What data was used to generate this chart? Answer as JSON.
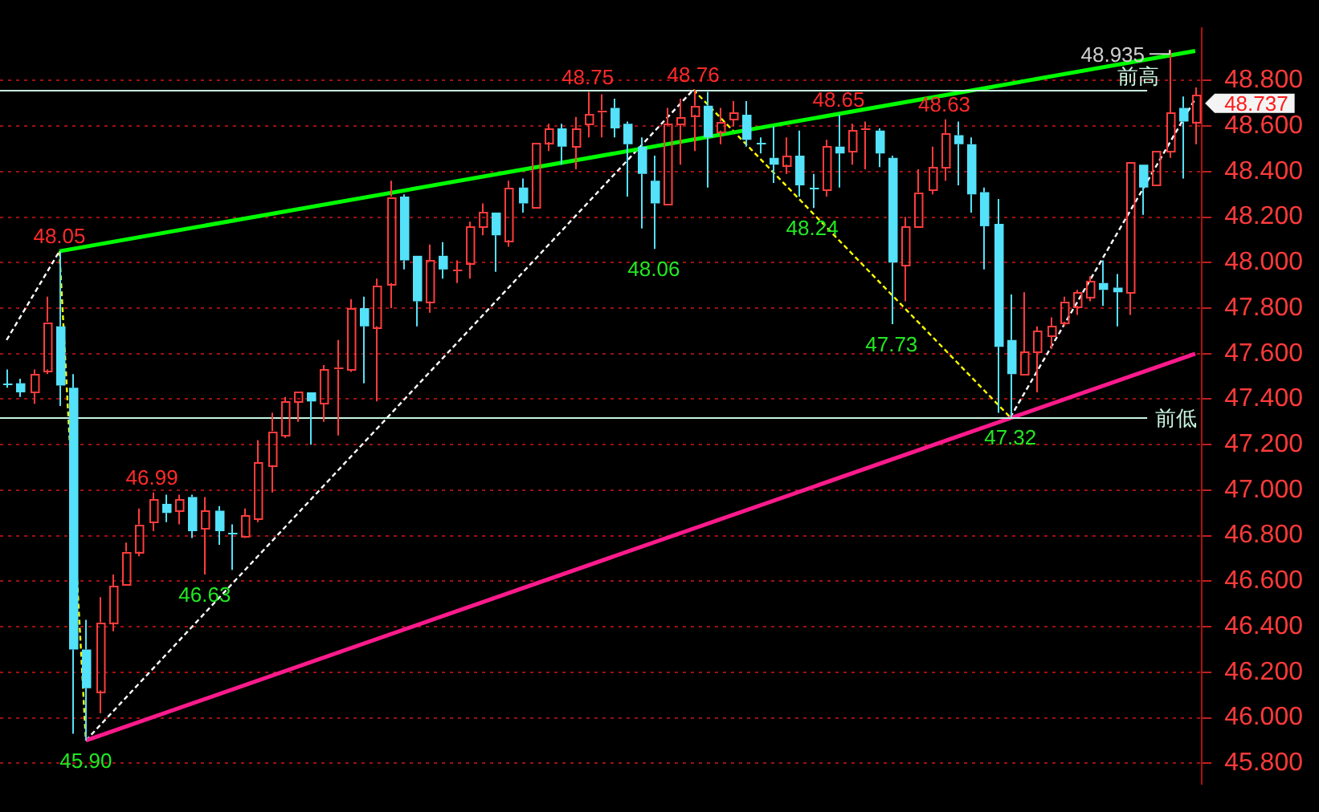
{
  "chart_data": {
    "type": "candlestick",
    "categories": [
      null,
      null,
      null,
      null,
      null,
      null,
      null,
      null,
      null,
      null,
      null,
      null,
      null,
      null,
      null,
      null,
      null,
      null,
      null,
      null,
      null,
      null,
      null,
      null,
      null,
      null,
      null,
      null,
      null,
      null,
      null,
      null,
      null,
      null,
      null,
      null,
      null,
      null,
      null,
      null,
      null,
      null,
      null,
      null,
      null,
      null,
      null,
      null,
      null,
      null,
      null,
      null,
      null,
      null,
      null,
      null,
      null,
      null,
      null,
      null,
      null,
      null,
      null,
      null,
      null,
      null,
      null,
      null,
      null,
      null,
      null,
      null,
      null,
      null,
      null,
      null,
      null,
      null,
      null,
      null,
      null,
      null,
      null,
      null,
      null,
      null,
      null,
      null,
      null,
      null,
      null
    ],
    "ohlc": [
      [
        47.47,
        47.53,
        47.45,
        47.47
      ],
      [
        47.47,
        47.49,
        47.41,
        47.43
      ],
      [
        47.43,
        47.53,
        47.38,
        47.51
      ],
      [
        47.53,
        47.85,
        47.51,
        47.74
      ],
      [
        47.72,
        48.05,
        47.37,
        47.46
      ],
      [
        47.45,
        47.51,
        45.93,
        46.3
      ],
      [
        46.3,
        46.43,
        45.9,
        46.13
      ],
      [
        46.12,
        46.53,
        46.02,
        46.42
      ],
      [
        46.42,
        46.63,
        46.38,
        46.58
      ],
      [
        46.59,
        46.77,
        46.59,
        46.73
      ],
      [
        46.73,
        46.92,
        46.71,
        46.85
      ],
      [
        46.86,
        46.99,
        46.82,
        46.96
      ],
      [
        46.94,
        46.98,
        46.86,
        46.9
      ],
      [
        46.91,
        46.98,
        46.85,
        46.96
      ],
      [
        46.97,
        46.98,
        46.79,
        46.82
      ],
      [
        46.83,
        46.97,
        46.63,
        46.91
      ],
      [
        46.91,
        46.93,
        46.76,
        46.82
      ],
      [
        46.81,
        46.85,
        46.65,
        46.81
      ],
      [
        46.8,
        46.92,
        46.79,
        46.89
      ],
      [
        46.87,
        47.22,
        46.86,
        47.12
      ],
      [
        47.11,
        47.34,
        46.99,
        47.26
      ],
      [
        47.24,
        47.41,
        47.23,
        47.39
      ],
      [
        47.39,
        47.43,
        47.3,
        47.43
      ],
      [
        47.43,
        47.43,
        47.2,
        47.39
      ],
      [
        47.38,
        47.55,
        47.3,
        47.53
      ],
      [
        47.53,
        47.66,
        47.24,
        47.54
      ],
      [
        47.53,
        47.84,
        47.52,
        47.8
      ],
      [
        47.8,
        47.85,
        47.47,
        47.72
      ],
      [
        47.72,
        47.93,
        47.39,
        47.9
      ],
      [
        47.91,
        48.36,
        47.8,
        48.29
      ],
      [
        48.29,
        48.3,
        47.97,
        48.01
      ],
      [
        48.03,
        48.03,
        47.72,
        47.83
      ],
      [
        47.83,
        48.08,
        47.78,
        48.01
      ],
      [
        48.03,
        48.09,
        47.93,
        47.97
      ],
      [
        47.97,
        48.01,
        47.91,
        47.97
      ],
      [
        48.0,
        48.18,
        47.93,
        48.16
      ],
      [
        48.16,
        48.26,
        48.12,
        48.22
      ],
      [
        48.22,
        48.22,
        47.96,
        48.12
      ],
      [
        48.1,
        48.36,
        48.07,
        48.33
      ],
      [
        48.33,
        48.37,
        48.22,
        48.26
      ],
      [
        48.25,
        48.53,
        48.25,
        48.53
      ],
      [
        48.53,
        48.61,
        48.49,
        48.59
      ],
      [
        48.59,
        48.61,
        48.43,
        48.51
      ],
      [
        48.51,
        48.64,
        48.41,
        48.59
      ],
      [
        48.61,
        48.75,
        48.55,
        48.65
      ],
      [
        48.66,
        48.74,
        48.55,
        48.67
      ],
      [
        48.68,
        48.72,
        48.55,
        48.59
      ],
      [
        48.61,
        48.62,
        48.29,
        48.52
      ],
      [
        48.51,
        48.55,
        48.15,
        48.39
      ],
      [
        48.36,
        48.47,
        48.06,
        48.26
      ],
      [
        48.26,
        48.68,
        48.26,
        48.61
      ],
      [
        48.61,
        48.72,
        48.43,
        48.64
      ],
      [
        48.65,
        48.76,
        48.49,
        48.69
      ],
      [
        48.69,
        48.75,
        48.33,
        48.55
      ],
      [
        48.58,
        48.68,
        48.52,
        48.62
      ],
      [
        48.63,
        48.71,
        48.6,
        48.66
      ],
      [
        48.65,
        48.71,
        48.51,
        48.54
      ],
      [
        48.53,
        48.55,
        48.48,
        48.53
      ],
      [
        48.46,
        48.6,
        48.35,
        48.43
      ],
      [
        48.43,
        48.55,
        48.39,
        48.47
      ],
      [
        48.47,
        48.58,
        48.29,
        48.34
      ],
      [
        48.33,
        48.39,
        48.24,
        48.33
      ],
      [
        48.32,
        48.54,
        48.29,
        48.51
      ],
      [
        48.51,
        48.65,
        48.33,
        48.48
      ],
      [
        48.49,
        48.61,
        48.43,
        48.58
      ],
      [
        48.58,
        48.62,
        48.41,
        48.59
      ],
      [
        48.58,
        48.59,
        48.42,
        48.48
      ],
      [
        48.46,
        48.47,
        47.73,
        48.0
      ],
      [
        47.99,
        48.2,
        47.83,
        48.16
      ],
      [
        48.16,
        48.41,
        48.16,
        48.31
      ],
      [
        48.32,
        48.51,
        48.3,
        48.42
      ],
      [
        48.42,
        48.63,
        48.36,
        48.57
      ],
      [
        48.56,
        48.62,
        48.34,
        48.52
      ],
      [
        48.52,
        48.55,
        48.22,
        48.3
      ],
      [
        48.31,
        48.33,
        47.97,
        48.16
      ],
      [
        48.17,
        48.28,
        47.34,
        47.63
      ],
      [
        47.66,
        47.86,
        47.32,
        47.51
      ],
      [
        47.51,
        47.87,
        47.51,
        47.61
      ],
      [
        47.61,
        47.72,
        47.43,
        47.7
      ],
      [
        47.68,
        47.76,
        47.62,
        47.72
      ],
      [
        47.74,
        47.85,
        47.72,
        47.83
      ],
      [
        47.81,
        47.88,
        47.77,
        47.87
      ],
      [
        47.85,
        47.94,
        47.83,
        47.92
      ],
      [
        47.91,
        48.01,
        47.81,
        47.88
      ],
      [
        47.89,
        47.95,
        47.72,
        47.87
      ],
      [
        47.87,
        48.44,
        47.77,
        48.44
      ],
      [
        48.43,
        48.43,
        48.21,
        48.33
      ],
      [
        48.34,
        48.49,
        48.34,
        48.49
      ],
      [
        48.49,
        48.935,
        48.46,
        48.66
      ],
      [
        48.68,
        48.73,
        48.37,
        48.62
      ],
      [
        48.62,
        48.77,
        48.52,
        48.737
      ]
    ],
    "colors": [
      "#54e1fa",
      "#54e1fa",
      "#ff3c3c",
      "#ff3c3c",
      "#54e1fa",
      "#54e1fa",
      "#54e1fa",
      "#ff3c3c",
      "#ff3c3c",
      "#ff3c3c",
      "#ff3c3c",
      "#ff3c3c",
      "#54e1fa",
      "#ff3c3c",
      "#54e1fa",
      "#ff3c3c",
      "#54e1fa",
      "#54e1fa",
      "#ff3c3c",
      "#ff3c3c",
      "#ff3c3c",
      "#ff3c3c",
      "#ff3c3c",
      "#54e1fa",
      "#ff3c3c",
      "#ff3c3c",
      "#ff3c3c",
      "#54e1fa",
      "#ff3c3c",
      "#ff3c3c",
      "#54e1fa",
      "#54e1fa",
      "#ff3c3c",
      "#54e1fa",
      "#ff3c3c",
      "#ff3c3c",
      "#ff3c3c",
      "#54e1fa",
      "#ff3c3c",
      "#54e1fa",
      "#ff3c3c",
      "#ff3c3c",
      "#54e1fa",
      "#ff3c3c",
      "#ff3c3c",
      "#ff3c3c",
      "#54e1fa",
      "#54e1fa",
      "#54e1fa",
      "#54e1fa",
      "#ff3c3c",
      "#ff3c3c",
      "#ff3c3c",
      "#54e1fa",
      "#ff3c3c",
      "#ff3c3c",
      "#54e1fa",
      "#54e1fa",
      "#54e1fa",
      "#ff3c3c",
      "#54e1fa",
      "#54e1fa",
      "#ff3c3c",
      "#54e1fa",
      "#ff3c3c",
      "#ff3c3c",
      "#54e1fa",
      "#54e1fa",
      "#ff3c3c",
      "#ff3c3c",
      "#ff3c3c",
      "#ff3c3c",
      "#54e1fa",
      "#54e1fa",
      "#54e1fa",
      "#54e1fa",
      "#54e1fa",
      "#ff3c3c",
      "#ff3c3c",
      "#ff3c3c",
      "#ff3c3c",
      "#ff3c3c",
      "#ff3c3c",
      "#54e1fa",
      "#54e1fa",
      "#ff3c3c",
      "#54e1fa",
      "#ff3c3c",
      "#ff3c3c",
      "#54e1fa",
      "#ff3c3c"
    ],
    "value_labels": [
      null,
      null,
      null,
      null,
      "48.05",
      null,
      "45.90",
      null,
      null,
      null,
      null,
      "46.99",
      null,
      null,
      null,
      "46.63",
      null,
      null,
      null,
      null,
      null,
      null,
      null,
      null,
      null,
      null,
      null,
      null,
      null,
      null,
      null,
      null,
      null,
      null,
      null,
      null,
      null,
      null,
      null,
      null,
      null,
      null,
      null,
      null,
      "48.75",
      null,
      null,
      null,
      null,
      "48.06",
      null,
      null,
      "48.76",
      null,
      null,
      null,
      null,
      null,
      null,
      null,
      null,
      "48.24",
      null,
      "48.65",
      null,
      null,
      null,
      "47.73",
      null,
      null,
      null,
      "48.63",
      null,
      null,
      null,
      null,
      "47.32",
      null,
      null,
      null,
      null,
      null,
      null,
      null,
      null,
      null,
      null,
      null,
      "48.935",
      null,
      null
    ],
    "series": [
      {
        "type": "line",
        "color": "#00ff00",
        "values": [
          null,
          null,
          null,
          null,
          48.05,
          null,
          null,
          null,
          null,
          null,
          null,
          null,
          null,
          null,
          null,
          null,
          null,
          null,
          null,
          null,
          null,
          null,
          null,
          null,
          null,
          null,
          null,
          null,
          null,
          null,
          null,
          null,
          null,
          null,
          null,
          null,
          null,
          null,
          null,
          null,
          null,
          null,
          null,
          null,
          null,
          null,
          null,
          null,
          null,
          null,
          null,
          null,
          null,
          null,
          null,
          null,
          null,
          null,
          null,
          null,
          null,
          null,
          null,
          null,
          null,
          null,
          null,
          null,
          null,
          null,
          null,
          null,
          null,
          null,
          null,
          null,
          null,
          null,
          null,
          null,
          null,
          null,
          null,
          null,
          null,
          null,
          null,
          null,
          null,
          null,
          48.93
        ]
      },
      {
        "type": "line",
        "color": "#ff1a8c",
        "values": [
          null,
          null,
          null,
          null,
          null,
          null,
          45.9,
          null,
          null,
          null,
          null,
          null,
          null,
          null,
          null,
          null,
          null,
          null,
          null,
          null,
          null,
          null,
          null,
          null,
          null,
          null,
          null,
          null,
          null,
          null,
          null,
          null,
          null,
          null,
          null,
          null,
          null,
          null,
          null,
          null,
          null,
          null,
          null,
          null,
          null,
          null,
          null,
          null,
          null,
          null,
          null,
          null,
          null,
          null,
          null,
          null,
          null,
          null,
          null,
          null,
          null,
          null,
          null,
          null,
          null,
          null,
          null,
          null,
          null,
          null,
          null,
          null,
          null,
          null,
          null,
          null,
          null,
          null,
          null,
          null,
          null,
          null,
          null,
          null,
          null,
          null,
          null,
          null,
          null,
          null,
          47.6
        ]
      },
      {
        "type": "line",
        "color": "#ffffff",
        "line_style": "dashed",
        "values": [
          47.66,
          null,
          null,
          null,
          48.05,
          null,
          null,
          null,
          null,
          null,
          null,
          null,
          null,
          null,
          null,
          null,
          null,
          null,
          null,
          null,
          null,
          null,
          null,
          null,
          null,
          null,
          null,
          null,
          null,
          null,
          null,
          null,
          null,
          null,
          null,
          null,
          null,
          null,
          null,
          null,
          null,
          null,
          null,
          null,
          null,
          null,
          null,
          null,
          null,
          null,
          null,
          null,
          null,
          null,
          null,
          null,
          null,
          null,
          null,
          null,
          null,
          null,
          null,
          null,
          null,
          null,
          null,
          null,
          null,
          null,
          null,
          null,
          null,
          null,
          null,
          null,
          null,
          null,
          null,
          null,
          null,
          null,
          null,
          null,
          null,
          null,
          null,
          null,
          null,
          null,
          null
        ]
      },
      {
        "type": "line",
        "color": "#ffff00",
        "line_style": "dashed",
        "values": [
          null,
          null,
          null,
          null,
          48.05,
          null,
          45.9,
          null,
          null,
          null,
          null,
          null,
          null,
          null,
          null,
          null,
          null,
          null,
          null,
          null,
          null,
          null,
          null,
          null,
          null,
          null,
          null,
          null,
          null,
          null,
          null,
          null,
          null,
          null,
          null,
          null,
          null,
          null,
          null,
          null,
          null,
          null,
          null,
          null,
          null,
          null,
          null,
          null,
          null,
          null,
          null,
          null,
          null,
          null,
          null,
          null,
          null,
          null,
          null,
          null,
          null,
          null,
          null,
          null,
          null,
          null,
          null,
          null,
          null,
          null,
          null,
          null,
          null,
          null,
          null,
          null,
          null,
          null,
          null,
          null,
          null,
          null,
          null,
          null,
          null,
          null,
          null,
          null,
          null,
          null,
          null
        ]
      },
      {
        "type": "line",
        "color": "#ffffff",
        "line_style": "dashed",
        "values": [
          null,
          null,
          null,
          null,
          null,
          null,
          45.9,
          null,
          null,
          null,
          null,
          null,
          null,
          null,
          null,
          null,
          null,
          null,
          null,
          null,
          null,
          null,
          null,
          null,
          null,
          null,
          null,
          null,
          null,
          null,
          null,
          null,
          null,
          null,
          null,
          null,
          null,
          null,
          null,
          null,
          null,
          null,
          null,
          null,
          null,
          null,
          null,
          null,
          null,
          null,
          null,
          null,
          48.76,
          null,
          null,
          null,
          null,
          null,
          null,
          null,
          null,
          null,
          null,
          null,
          null,
          null,
          null,
          null,
          null,
          null,
          null,
          null,
          null,
          null,
          null,
          null,
          null,
          null,
          null,
          null,
          null,
          null,
          null,
          null,
          null,
          null,
          null,
          null,
          null,
          null,
          null
        ]
      },
      {
        "type": "line",
        "color": "#ffff00",
        "line_style": "dashed",
        "values": [
          null,
          null,
          null,
          null,
          null,
          null,
          null,
          null,
          null,
          null,
          null,
          null,
          null,
          null,
          null,
          null,
          null,
          null,
          null,
          null,
          null,
          null,
          null,
          null,
          null,
          null,
          null,
          null,
          null,
          null,
          null,
          null,
          null,
          null,
          null,
          null,
          null,
          null,
          null,
          null,
          null,
          null,
          null,
          null,
          null,
          null,
          null,
          null,
          null,
          null,
          null,
          null,
          48.76,
          null,
          null,
          null,
          null,
          null,
          null,
          null,
          null,
          null,
          null,
          null,
          null,
          null,
          null,
          null,
          null,
          null,
          null,
          null,
          null,
          null,
          null,
          null,
          47.32,
          null,
          null,
          null,
          null,
          null,
          null,
          null,
          null,
          null,
          null,
          null,
          null,
          null,
          null
        ]
      },
      {
        "type": "line",
        "color": "#ffffff",
        "line_style": "dashed",
        "values": [
          null,
          null,
          null,
          null,
          null,
          null,
          null,
          null,
          null,
          null,
          null,
          null,
          null,
          null,
          null,
          null,
          null,
          null,
          null,
          null,
          null,
          null,
          null,
          null,
          null,
          null,
          null,
          null,
          null,
          null,
          null,
          null,
          null,
          null,
          null,
          null,
          null,
          null,
          null,
          null,
          null,
          null,
          null,
          null,
          null,
          null,
          null,
          null,
          null,
          null,
          null,
          null,
          null,
          null,
          null,
          null,
          null,
          null,
          null,
          null,
          null,
          null,
          null,
          null,
          null,
          null,
          null,
          null,
          null,
          null,
          null,
          null,
          null,
          null,
          null,
          null,
          47.32,
          null,
          null,
          null,
          null,
          null,
          null,
          null,
          null,
          null,
          null,
          null,
          null,
          null,
          48.72
        ]
      }
    ],
    "ref_lines": [
      {
        "axis": "y",
        "value": 48.76,
        "label": "前高",
        "color": "#c8f5e0"
      },
      {
        "axis": "y",
        "value": 47.32,
        "label": "前低",
        "color": "#c8f5e0"
      }
    ],
    "annotations": [
      "48.737"
    ],
    "ylim": [
      45.71,
      49.03
    ],
    "yticks": [
      {
        "value": 45.8,
        "label": "45.800"
      },
      {
        "value": 46.0,
        "label": "46.000"
      },
      {
        "value": 46.2,
        "label": "46.200"
      },
      {
        "value": 46.4,
        "label": "46.400"
      },
      {
        "value": 46.6,
        "label": "46.600"
      },
      {
        "value": 46.8,
        "label": "46.800"
      },
      {
        "value": 47.0,
        "label": "47.000"
      },
      {
        "value": 47.2,
        "label": "47.200"
      },
      {
        "value": 47.4,
        "label": "47.400"
      },
      {
        "value": 47.6,
        "label": "47.600"
      },
      {
        "value": 47.8,
        "label": "47.800"
      },
      {
        "value": 48.0,
        "label": "48.000"
      },
      {
        "value": 48.2,
        "label": "48.200"
      },
      {
        "value": 48.4,
        "label": "48.400"
      },
      {
        "value": 48.6,
        "label": "48.600"
      },
      {
        "value": 48.8,
        "label": "48.800"
      }
    ],
    "grid": "y",
    "legend": false,
    "tick_labels": "y",
    "marker": "none"
  }
}
